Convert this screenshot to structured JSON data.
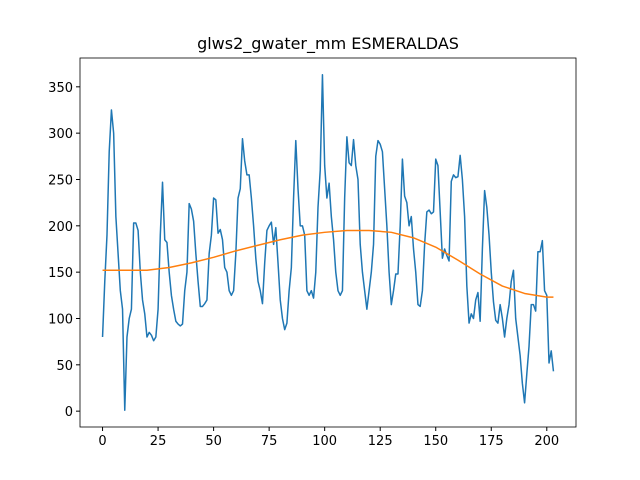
{
  "chart_data": {
    "type": "line",
    "title": "glws2_gwater_mm ESMERALDAS",
    "xlim": [
      -10.15,
      213.15
    ],
    "ylim": [
      -17.1,
      381.1
    ],
    "xticks": [
      0,
      25,
      50,
      75,
      100,
      125,
      150,
      175,
      200
    ],
    "yticks": [
      0,
      50,
      100,
      150,
      200,
      250,
      300,
      350
    ],
    "series": [
      {
        "color": "#1f77b4",
        "x": [
          0,
          1,
          2,
          3,
          4,
          5,
          6,
          7,
          8,
          9,
          10,
          11,
          12,
          13,
          14,
          15,
          16,
          17,
          18,
          19,
          20,
          21,
          22,
          23,
          24,
          25,
          26,
          27,
          28,
          29,
          30,
          31,
          32,
          33,
          34,
          35,
          36,
          37,
          38,
          39,
          40,
          41,
          42,
          43,
          44,
          45,
          46,
          47,
          48,
          49,
          50,
          51,
          52,
          53,
          54,
          55,
          56,
          57,
          58,
          59,
          60,
          61,
          62,
          63,
          64,
          65,
          66,
          67,
          68,
          69,
          70,
          71,
          72,
          73,
          74,
          75,
          76,
          77,
          78,
          79,
          80,
          81,
          82,
          83,
          84,
          85,
          86,
          87,
          88,
          89,
          90,
          91,
          92,
          93,
          94,
          95,
          96,
          97,
          98,
          99,
          100,
          101,
          102,
          103,
          104,
          105,
          106,
          107,
          108,
          109,
          110,
          111,
          112,
          113,
          114,
          115,
          116,
          117,
          118,
          119,
          120,
          121,
          122,
          123,
          124,
          125,
          126,
          127,
          128,
          129,
          130,
          131,
          132,
          133,
          134,
          135,
          136,
          137,
          138,
          139,
          140,
          141,
          142,
          143,
          144,
          145,
          146,
          147,
          148,
          149,
          150,
          151,
          152,
          153,
          154,
          155,
          156,
          157,
          158,
          159,
          160,
          161,
          162,
          163,
          164,
          165,
          166,
          167,
          168,
          169,
          170,
          171,
          172,
          173,
          174,
          175,
          176,
          177,
          178,
          179,
          180,
          181,
          182,
          183,
          184,
          185,
          186,
          187,
          188,
          189,
          190,
          191,
          192,
          193,
          194,
          195,
          196,
          197,
          198,
          199,
          200,
          201,
          202,
          203
        ],
        "values": [
          80,
          140,
          190,
          280,
          325,
          300,
          210,
          170,
          130,
          110,
          1,
          80,
          100,
          110,
          203,
          203,
          195,
          150,
          120,
          105,
          80,
          85,
          82,
          76,
          80,
          110,
          190,
          247,
          185,
          182,
          150,
          125,
          110,
          97,
          94,
          92,
          94,
          130,
          150,
          224,
          218,
          205,
          170,
          140,
          113,
          113,
          116,
          120,
          170,
          190,
          230,
          228,
          192,
          196,
          185,
          155,
          150,
          130,
          125,
          130,
          170,
          230,
          240,
          294,
          270,
          255,
          255,
          230,
          200,
          165,
          140,
          130,
          116,
          160,
          195,
          200,
          204,
          180,
          198,
          160,
          120,
          100,
          88,
          95,
          130,
          155,
          230,
          292,
          240,
          200,
          200,
          190,
          130,
          125,
          130,
          122,
          150,
          220,
          260,
          363,
          265,
          230,
          246,
          210,
          185,
          150,
          130,
          125,
          130,
          230,
          296,
          268,
          265,
          293,
          265,
          250,
          180,
          150,
          130,
          110,
          130,
          150,
          180,
          275,
          292,
          288,
          280,
          240,
          200,
          150,
          115,
          130,
          148,
          148,
          200,
          272,
          232,
          225,
          200,
          210,
          175,
          150,
          115,
          113,
          130,
          180,
          215,
          217,
          213,
          215,
          272,
          265,
          215,
          165,
          175,
          168,
          162,
          248,
          255,
          252,
          253,
          276,
          250,
          210,
          135,
          95,
          105,
          100,
          120,
          128,
          97,
          175,
          238,
          220,
          190,
          150,
          118,
          98,
          95,
          115,
          100,
          80,
          100,
          115,
          140,
          152,
          100,
          80,
          60,
          30,
          9,
          40,
          70,
          115,
          115,
          108,
          172,
          172,
          184,
          130,
          125,
          52,
          65,
          43
        ]
      },
      {
        "color": "#ff7f0e",
        "x": [
          0,
          10,
          20,
          30,
          40,
          50,
          60,
          70,
          80,
          90,
          100,
          110,
          120,
          130,
          140,
          150,
          160,
          170,
          180,
          190,
          200,
          203
        ],
        "values": [
          152,
          152,
          152,
          155,
          160,
          166,
          173,
          179,
          185,
          190,
          193,
          195,
          195,
          193,
          187,
          177,
          163,
          148,
          135,
          127,
          123,
          123
        ]
      }
    ]
  }
}
